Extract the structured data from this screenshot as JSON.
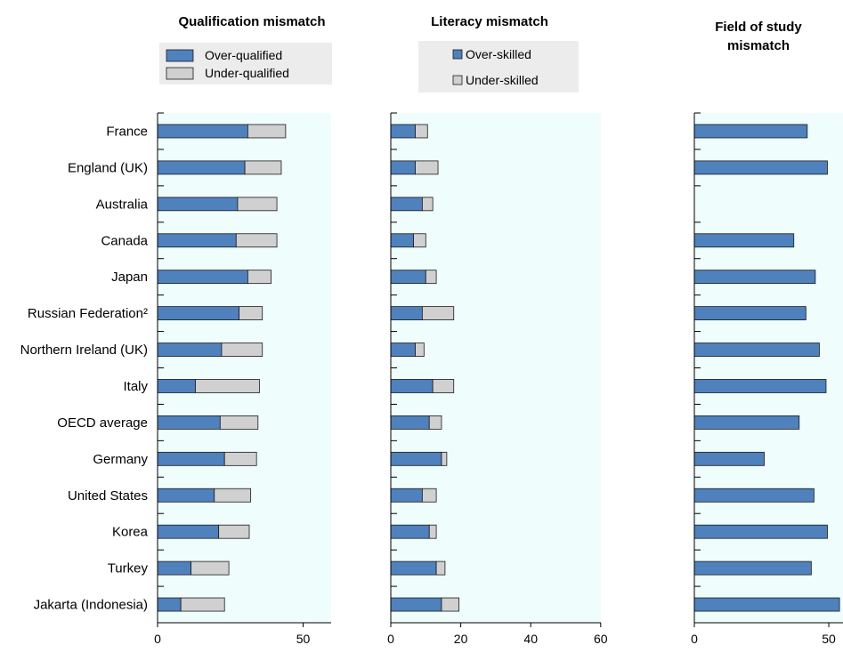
{
  "colors": {
    "primary": "#4f81bd",
    "secondary": "#d0d0d0",
    "plot_bg": "#f0fdfd",
    "legend_bg": "#ececec"
  },
  "chart_data": [
    {
      "type": "bar",
      "stacked": true,
      "orientation": "horizontal",
      "title": "Qualification mismatch",
      "categories": [
        "France",
        "England (UK)",
        "Australia",
        "Canada",
        "Japan",
        "Russian Federation²",
        "Northern Ireland (UK)",
        "Italy",
        "OECD average",
        "Germany",
        "United States",
        "Korea",
        "Turkey",
        "Jakarta (Indonesia)"
      ],
      "series": [
        {
          "name": "Over-qualified",
          "values": [
            31,
            30,
            27.5,
            27,
            31,
            28,
            22,
            13,
            21.5,
            23,
            19.5,
            21,
            11.5,
            8
          ]
        },
        {
          "name": "Under-qualified",
          "values": [
            13,
            12.5,
            13.5,
            14,
            8,
            8,
            14,
            22,
            13,
            11,
            12.5,
            10.5,
            13,
            15
          ]
        }
      ],
      "xlim": [
        0,
        60
      ],
      "xticks": [
        0,
        50
      ],
      "legend_position": "top"
    },
    {
      "type": "bar",
      "stacked": true,
      "orientation": "horizontal",
      "title": "Literacy mismatch",
      "categories": [
        "France",
        "England (UK)",
        "Australia",
        "Canada",
        "Japan",
        "Russian Federation²",
        "Northern Ireland (UK)",
        "Italy",
        "OECD average",
        "Germany",
        "United States",
        "Korea",
        "Turkey",
        "Jakarta (Indonesia)"
      ],
      "series": [
        {
          "name": "Over-skilled",
          "values": [
            7,
            7,
            9,
            6.5,
            10,
            9,
            7,
            12,
            11,
            14.5,
            9,
            11,
            13,
            14.5
          ]
        },
        {
          "name": "Under-skilled",
          "values": [
            3.5,
            6.5,
            3,
            3.5,
            3,
            9,
            2.5,
            6,
            3.5,
            1.5,
            4,
            2,
            2.5,
            5
          ]
        }
      ],
      "xlim": [
        0,
        60
      ],
      "xticks": [
        0,
        20,
        40,
        60
      ],
      "legend_position": "top"
    },
    {
      "type": "bar",
      "orientation": "horizontal",
      "title": "Field of study mismatch",
      "categories": [
        "France",
        "England (UK)",
        "Australia",
        "Canada",
        "Japan",
        "Russian Federation²",
        "Northern Ireland (UK)",
        "Italy",
        "OECD average",
        "Germany",
        "United States",
        "Korea",
        "Turkey",
        "Jakarta (Indonesia)"
      ],
      "series": [
        {
          "values": [
            42,
            49.5,
            null,
            37,
            45,
            41.5,
            46.5,
            49,
            39,
            26,
            44.5,
            49.5,
            43.5,
            54
          ]
        }
      ],
      "xlim": [
        0,
        55
      ],
      "xticks": [
        0,
        50
      ]
    }
  ]
}
